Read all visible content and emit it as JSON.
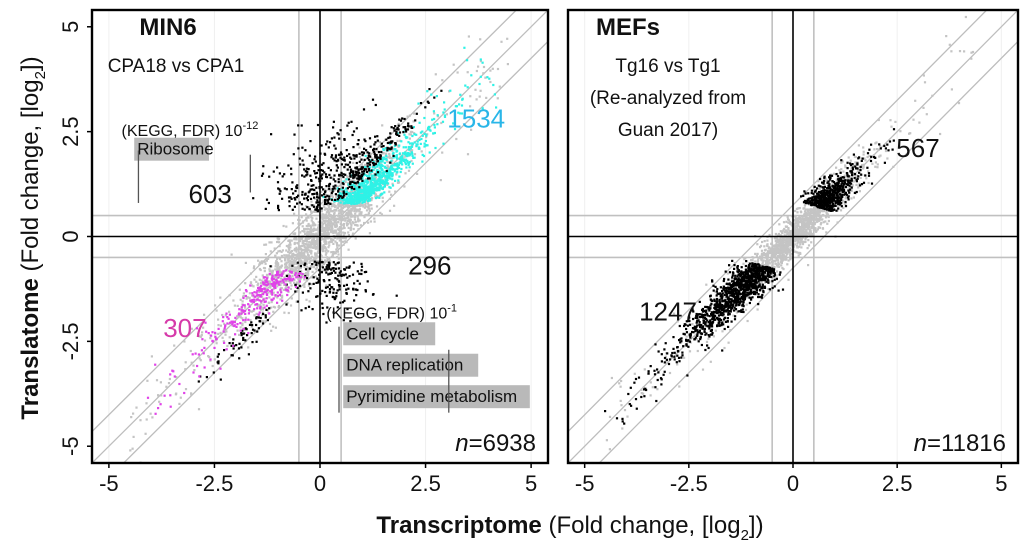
{
  "figure": {
    "ylabel_bold": "Translatome",
    "ylabel_rest": " (Fold change, [log",
    "ylabel_sub": "2",
    "ylabel_end": "])",
    "xlabel_bold": "Transcriptome",
    "xlabel_rest": " (Fold change, [log",
    "xlabel_sub": "2",
    "xlabel_end": "])"
  },
  "chart_data": [
    {
      "type": "scatter",
      "title": "MIN6",
      "subtitle": "CPA18 vs CPA1",
      "xlim": [
        -5.4,
        5.4
      ],
      "ylim": [
        -5.4,
        5.4
      ],
      "x_ticks": [
        "-5",
        "-2.5",
        "0",
        "2.5",
        "5"
      ],
      "x_tick_values": [
        -5,
        -2.5,
        0,
        2.5,
        5
      ],
      "y_ticks": [
        "-5",
        "-2.5",
        "0",
        "2.5",
        "5"
      ],
      "y_tick_values": [
        -5,
        -2.5,
        0,
        2.5,
        5
      ],
      "threshold": 0.5,
      "counts": [
        {
          "label": "1534",
          "x": 3.7,
          "y": 2.6,
          "color": "#29b6e8"
        },
        {
          "label": "603",
          "x": -2.6,
          "y": 0.8,
          "color": "#111111"
        },
        {
          "label": "296",
          "x": 2.6,
          "y": -0.9,
          "color": "#111111"
        },
        {
          "label": "307",
          "x": -3.2,
          "y": -2.4,
          "color": "#d63aa9"
        }
      ],
      "annotations": [
        {
          "text": "(KEGG, FDR) 10",
          "sup": "-12",
          "x": -4.7,
          "y": 2.4
        },
        {
          "text": "(KEGG, FDR) 10",
          "sup": "-1",
          "x": 0.15,
          "y": -1.95
        }
      ],
      "pathway_boxes": [
        {
          "text": "Ribosome",
          "x": -4.4,
          "y": 1.95,
          "w": 2.1
        },
        {
          "text": "Cell cycle",
          "x": 0.55,
          "y": -2.45,
          "w": 1.5
        },
        {
          "text": "DNA replication",
          "x": 0.55,
          "y": -3.2,
          "w": 0.4
        },
        {
          "text": "Pyrimidine metabolism",
          "x": 0.55,
          "y": -3.95,
          "w": 1.1
        }
      ],
      "n_label": "n",
      "n_value": "=6938",
      "series": [
        {
          "color": "#c4c4c4",
          "center": "diag",
          "spread": 1.6
        },
        {
          "color": "#000000",
          "region": "up-trans"
        },
        {
          "color": "#000000",
          "region": "down-trans"
        },
        {
          "color": "#2ef2e6",
          "region": "up-both"
        },
        {
          "color": "#e043e8",
          "region": "down-both"
        }
      ]
    },
    {
      "type": "scatter",
      "title": "MEFs",
      "subtitle": "Tg16 vs Tg1",
      "subtitle2": "(Re-analyzed from",
      "subtitle3": "Guan 2017)",
      "xlim": [
        -5.4,
        5.4
      ],
      "ylim": [
        -5.4,
        5.4
      ],
      "x_ticks": [
        "-5",
        "-2.5",
        "0",
        "2.5",
        "5"
      ],
      "x_tick_values": [
        -5,
        -2.5,
        0,
        2.5,
        5
      ],
      "threshold": 0.5,
      "counts": [
        {
          "label": "567",
          "x": 3.0,
          "y": 1.9,
          "color": "#111111"
        },
        {
          "label": "1247",
          "x": -3.0,
          "y": -2.0,
          "color": "#111111"
        }
      ],
      "n_label": "n",
      "n_value": "=11816",
      "series": [
        {
          "color": "#c4c4c4",
          "center": "diag"
        },
        {
          "color": "#000000",
          "region": "up-both"
        },
        {
          "color": "#000000",
          "region": "down-both"
        }
      ]
    }
  ]
}
